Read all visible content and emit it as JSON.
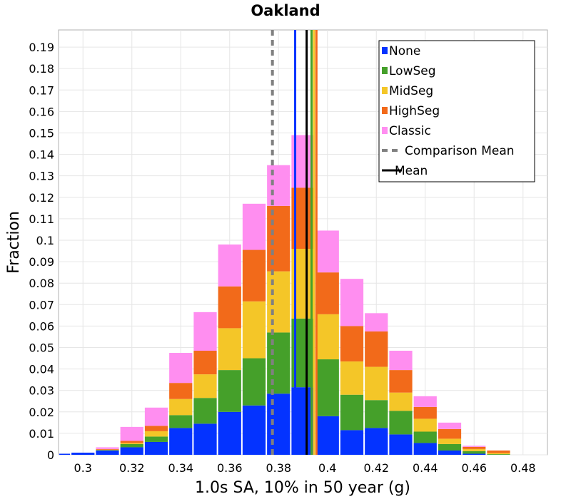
{
  "chart_data": {
    "type": "bar",
    "stacked": true,
    "title": "Oakland",
    "xlabel": "1.0s SA, 10% in 50 year (g)",
    "ylabel": "Fraction",
    "xlim": [
      0.29,
      0.49
    ],
    "ylim": [
      0,
      0.198
    ],
    "bin_width": 0.01,
    "grid": true,
    "legend_position": "top-right",
    "x_ticks": [
      0.3,
      0.32,
      0.34,
      0.36,
      0.38,
      0.4,
      0.42,
      0.44,
      0.46,
      0.48
    ],
    "x_tick_labels": [
      "0.3",
      "0.32",
      "0.34",
      "0.36",
      "0.38",
      "0.4",
      "0.42",
      "0.44",
      "0.46",
      "0.48"
    ],
    "y_ticks": [
      0,
      0.01,
      0.02,
      0.03,
      0.04,
      0.05,
      0.06,
      0.07,
      0.08,
      0.09,
      0.1,
      0.11,
      0.12,
      0.13,
      0.14,
      0.15,
      0.16,
      0.17,
      0.18,
      0.19
    ],
    "y_tick_labels": [
      "0",
      "0.01",
      "0.02",
      "0.03",
      "0.04",
      "0.05",
      "0.06",
      "0.07",
      "0.08",
      "0.09",
      "0.1",
      "0.11",
      "0.12",
      "0.13",
      "0.14",
      "0.15",
      "0.16",
      "0.17",
      "0.18",
      "0.19"
    ],
    "bin_centers": [
      0.29,
      0.3,
      0.31,
      0.32,
      0.33,
      0.34,
      0.35,
      0.36,
      0.37,
      0.38,
      0.39,
      0.4,
      0.41,
      0.42,
      0.43,
      0.44,
      0.45,
      0.46,
      0.47,
      0.48,
      0.49
    ],
    "series": [
      {
        "name": "None",
        "color": "#0433ff",
        "values": [
          0.0005,
          0.001,
          0.002,
          0.0035,
          0.006,
          0.0125,
          0.0145,
          0.02,
          0.023,
          0.0285,
          0.0315,
          0.018,
          0.0115,
          0.0125,
          0.0095,
          0.0055,
          0.002,
          0.0005,
          0,
          0,
          0
        ]
      },
      {
        "name": "LowSeg",
        "color": "#45a02a",
        "values": [
          0,
          0,
          0.0002,
          0.0015,
          0.0025,
          0.006,
          0.012,
          0.0195,
          0.022,
          0.0285,
          0.032,
          0.0265,
          0.0165,
          0.013,
          0.011,
          0.0053,
          0.003,
          0.0012,
          0.0003,
          0,
          0
        ]
      },
      {
        "name": "MidSeg",
        "color": "#f4c628",
        "values": [
          0,
          0,
          0.0002,
          0.0005,
          0.0025,
          0.0075,
          0.011,
          0.0195,
          0.0265,
          0.0285,
          0.0325,
          0.021,
          0.0155,
          0.0155,
          0.0085,
          0.006,
          0.0025,
          0.001,
          0.0005,
          0,
          0
        ]
      },
      {
        "name": "HighSeg",
        "color": "#f26a1a",
        "values": [
          0,
          0,
          0.0003,
          0.001,
          0.0025,
          0.0075,
          0.011,
          0.0195,
          0.024,
          0.0305,
          0.0285,
          0.0195,
          0.0165,
          0.0165,
          0.0105,
          0.0055,
          0.0045,
          0.001,
          0.0012,
          0,
          0
        ]
      },
      {
        "name": "Classic",
        "color": "#ff8ef0",
        "values": [
          0,
          0,
          0.0008,
          0.0065,
          0.0085,
          0.014,
          0.018,
          0.0195,
          0.0215,
          0.019,
          0.0245,
          0.0195,
          0.022,
          0.0085,
          0.009,
          0.005,
          0.003,
          0.0005,
          0,
          0,
          0
        ]
      }
    ],
    "reference_lines": [
      {
        "name": "Comparison Mean",
        "x": 0.3775,
        "color": "#808080",
        "style": "dashed"
      },
      {
        "name": "Mean",
        "x": 0.3915,
        "color": "#000000",
        "style": "solid"
      },
      {
        "name": "None mean",
        "x": 0.3868,
        "color": "#0433ff",
        "style": "solid",
        "in_legend": false
      },
      {
        "name": "LowSeg mean",
        "x": 0.3935,
        "color": "#45a02a",
        "style": "solid",
        "in_legend": false
      },
      {
        "name": "MidSeg mean",
        "x": 0.3945,
        "color": "#f4c628",
        "style": "solid",
        "in_legend": false
      },
      {
        "name": "HighSeg mean",
        "x": 0.3955,
        "color": "#f26a1a",
        "style": "solid",
        "in_legend": false
      }
    ],
    "legend": [
      {
        "label": "None",
        "kind": "patch",
        "color": "#0433ff"
      },
      {
        "label": "LowSeg",
        "kind": "patch",
        "color": "#45a02a"
      },
      {
        "label": "MidSeg",
        "kind": "patch",
        "color": "#f4c628"
      },
      {
        "label": "HighSeg",
        "kind": "patch",
        "color": "#f26a1a"
      },
      {
        "label": "Classic",
        "kind": "patch",
        "color": "#ff8ef0"
      },
      {
        "label": "Comparison Mean",
        "kind": "dashed",
        "color": "#808080"
      },
      {
        "label": "Mean",
        "kind": "solid",
        "color": "#000000"
      }
    ]
  }
}
